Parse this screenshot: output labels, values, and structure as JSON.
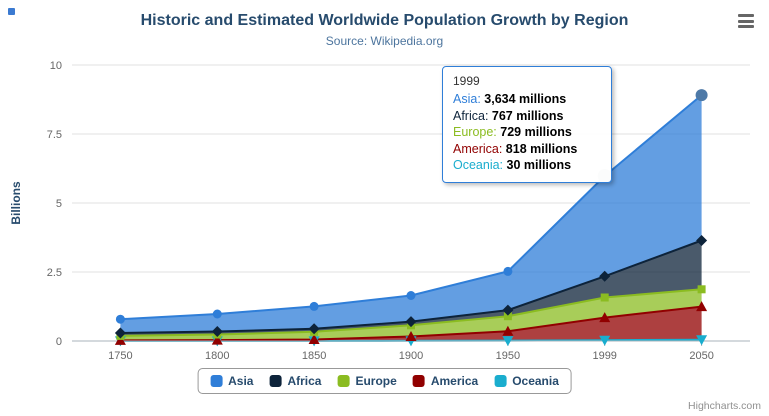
{
  "page": {
    "credits": "Highcharts.com"
  },
  "chart": {
    "title": "Historic and Estimated Worldwide Population Growth by Region",
    "subtitle": "Source: Wikipedia.org",
    "y_axis_title": "Billions"
  },
  "tooltip": {
    "header": "1999",
    "rows": [
      {
        "name": "Asia",
        "value": "3,634 millions",
        "color": "#2f7ed8"
      },
      {
        "name": "Africa",
        "value": "767 millions",
        "color": "#0d233a"
      },
      {
        "name": "Europe",
        "value": "729 millions",
        "color": "#8bbc21"
      },
      {
        "name": "America",
        "value": "818 millions",
        "color": "#910000"
      },
      {
        "name": "Oceania",
        "value": "30 millions",
        "color": "#1aadce"
      }
    ]
  },
  "chart_data": {
    "type": "area",
    "stacked": true,
    "title": "Historic and Estimated Worldwide Population Growth by Region",
    "subtitle": "Source: Wikipedia.org",
    "xlabel": "",
    "ylabel": "Billions",
    "unit": "millions",
    "ylim": [
      0,
      10
    ],
    "yticks": [
      {
        "v": 0,
        "label": "0"
      },
      {
        "v": 2.5,
        "label": "2.5"
      },
      {
        "v": 5,
        "label": "5"
      },
      {
        "v": 7.5,
        "label": "7.5"
      },
      {
        "v": 10,
        "label": "10"
      }
    ],
    "categories": [
      "1750",
      "1800",
      "1850",
      "1900",
      "1950",
      "1999",
      "2050"
    ],
    "legend_position": "bottom",
    "grid": true,
    "series": [
      {
        "name": "Asia",
        "color": "#2f7ed8",
        "marker": "circle",
        "values": [
          502,
          635,
          809,
          947,
          1402,
          3634,
          5268
        ]
      },
      {
        "name": "Africa",
        "color": "#0d233a",
        "marker": "diamond",
        "values": [
          106,
          107,
          111,
          133,
          221,
          767,
          1766
        ]
      },
      {
        "name": "Europe",
        "color": "#8bbc21",
        "marker": "square",
        "values": [
          163,
          203,
          276,
          408,
          547,
          729,
          628
        ]
      },
      {
        "name": "America",
        "color": "#910000",
        "marker": "triangle",
        "values": [
          18,
          31,
          54,
          156,
          339,
          818,
          1201
        ]
      },
      {
        "name": "Oceania",
        "color": "#1aadce",
        "marker": "triangle-down",
        "values": [
          2,
          2,
          2,
          6,
          13,
          30,
          46
        ]
      }
    ],
    "highlights": [
      {
        "series": "Asia",
        "point_index": 5,
        "radius": 7,
        "color": "#7e93a7"
      },
      {
        "series": "Asia",
        "point_index": 6,
        "radius": 6,
        "color": "#4e79a7"
      }
    ]
  }
}
